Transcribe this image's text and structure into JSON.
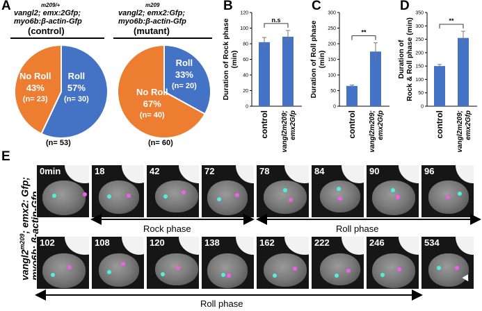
{
  "panels": {
    "A": "A",
    "B": "B",
    "C": "C",
    "D": "D",
    "E": "E"
  },
  "panel_a": {
    "control": {
      "genotype_line1": "vangl2",
      "genotype_sup": "m209/+",
      "genotype_line1_rest": "; emx:2Gfp;",
      "genotype_line2": "myo6b:β-actin-Gfp",
      "group": "(control)",
      "n_total": "(n= 53)",
      "roll_label": "Roll",
      "roll_pct": "57%",
      "roll_n": "(n= 30)",
      "noroll_label": "No Roll",
      "noroll_pct": "43%",
      "noroll_n": "(n= 23)"
    },
    "mutant": {
      "genotype_line1": "vangl2",
      "genotype_sup": "m209",
      "genotype_line1_rest": "; emx2:Gfp;",
      "genotype_line2": "myo6b:β-actin-Gfp",
      "group": "(mutant)",
      "n_total": "(n= 60)",
      "roll_label": "Roll",
      "roll_pct": "33%",
      "roll_n": "(n= 20)",
      "noroll_label": "No Roll",
      "noroll_pct": "67%",
      "noroll_n": "(n= 40)"
    }
  },
  "colors": {
    "roll": "#4472c4",
    "noroll": "#ed7d31",
    "bar": "#4472c4",
    "cyan_dot": "#4ff0e0",
    "magenta_dot": "#f060e8"
  },
  "chart_data": [
    {
      "type": "pie",
      "panel": "A",
      "title": "(control)",
      "slices": [
        {
          "label": "Roll",
          "value": 57,
          "count": 30
        },
        {
          "label": "No Roll",
          "value": 43,
          "count": 23
        }
      ]
    },
    {
      "type": "pie",
      "panel": "A",
      "title": "(mutant)",
      "slices": [
        {
          "label": "Roll",
          "value": 33,
          "count": 20
        },
        {
          "label": "No Roll",
          "value": 67,
          "count": 40
        }
      ]
    },
    {
      "type": "bar",
      "panel": "B",
      "ylabel": "Duration of Rock phase (min)",
      "ylabel_lines": [
        "Duration of Rock phase",
        "(min)"
      ],
      "categories": [
        "control",
        "vangl2m209; emx2Gfp"
      ],
      "category_lines": [
        [
          "control"
        ],
        [
          "vangl2m209;",
          "emx2Gfp"
        ]
      ],
      "values": [
        82,
        89
      ],
      "errors": [
        6,
        8
      ],
      "ylim": [
        0,
        120
      ],
      "yticks": [
        0,
        20,
        40,
        60,
        80,
        100,
        120
      ],
      "significance": "n.s"
    },
    {
      "type": "bar",
      "panel": "C",
      "ylabel": "Duration of Roll phase (min)",
      "ylabel_lines": [
        "Duration of Roll phase",
        "(min)"
      ],
      "categories": [
        "control",
        "vangl2m209; emx2Gfp"
      ],
      "category_lines": [
        [
          "control"
        ],
        [
          "vangl2m209;",
          "emx2Gfp"
        ]
      ],
      "values": [
        65,
        175
      ],
      "errors": [
        3,
        28
      ],
      "ylim": [
        0,
        300
      ],
      "yticks": [
        0,
        50,
        100,
        150,
        200,
        250,
        300
      ],
      "significance": "**"
    },
    {
      "type": "bar",
      "panel": "D",
      "ylabel": "Duration of Rock & Roll phase (min)",
      "ylabel_lines": [
        "Duration of",
        "Rock & Roll phase (min)"
      ],
      "categories": [
        "control",
        "vangl2m209; emx2Gfp"
      ],
      "category_lines": [
        [
          "control"
        ],
        [
          "vangl2m209;",
          "emx2Gfp"
        ]
      ],
      "values": [
        150,
        255
      ],
      "errors": [
        6,
        25
      ],
      "ylim": [
        0,
        350
      ],
      "yticks": [
        0,
        50,
        100,
        150,
        200,
        250,
        300,
        350
      ],
      "significance": "**"
    }
  ],
  "panel_e": {
    "side_label_line1": "vangl2",
    "side_label_sup": "m209",
    "side_label_line1_rest": "; emx2: Gfp;",
    "side_label_line2": "myo6b: β-actin-Gfp",
    "row1_frames": [
      "0min",
      "18",
      "42",
      "72",
      "78",
      "84",
      "90",
      "96"
    ],
    "row2_frames": [
      "102",
      "108",
      "120",
      "138",
      "162",
      "222",
      "246",
      "534"
    ],
    "phases": {
      "rock": "Rock phase",
      "roll_top": "Roll phase",
      "roll_bottom": "Roll phase"
    }
  }
}
